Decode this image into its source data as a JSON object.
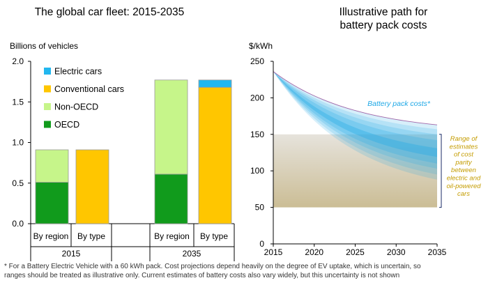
{
  "left_title": "The global car fleet: 2015-2035",
  "left_unit": "Billions of vehicles",
  "right_title_line1": "Illustrative path for",
  "right_title_line2": "battery pack costs",
  "right_unit": "$/kWh",
  "footnote_line1": "* For a Battery Electric Vehicle with a 60 kWh pack. Cost projections depend heavily on the degree of EV uptake, which is uncertain, so",
  "footnote_line2": "ranges should be treated as illustrative only. Current estimates of battery costs also vary widely, but this uncertainty is not shown",
  "colors": {
    "electric": "#22b7ef",
    "conventional": "#ffc600",
    "non_oecd": "#c6f58a",
    "oecd": "#119b1c",
    "band_blue": "#1fa8e6",
    "parity_band_top": "#e6e3dc",
    "parity_band_bottom": "#cbbd95",
    "parity_text": "#c49c00"
  },
  "chart_data": [
    {
      "type": "bar",
      "stacked": true,
      "title": "The global car fleet: 2015-2035",
      "ylabel": "Billions of vehicles",
      "ylim": [
        0,
        2.0
      ],
      "yticks": [
        "0.0",
        "0.5",
        "1.0",
        "1.5",
        "2.0"
      ],
      "categories": [
        "By region",
        "By type",
        "By region",
        "By type"
      ],
      "groups": [
        "2015",
        "2035"
      ],
      "legend": [
        "Electric cars",
        "Conventional cars",
        "Non-OECD",
        "OECD"
      ],
      "series": [
        {
          "name": "OECD",
          "values": [
            0.51,
            0,
            0.61,
            0
          ]
        },
        {
          "name": "Non-OECD",
          "values": [
            0.4,
            0,
            1.16,
            0
          ]
        },
        {
          "name": "Conventional cars",
          "values": [
            0,
            0.91,
            0,
            1.68
          ]
        },
        {
          "name": "Electric cars",
          "values": [
            0,
            0,
            0,
            0.09
          ]
        }
      ]
    },
    {
      "type": "area",
      "title": "Illustrative path for battery pack costs",
      "ylabel": "$/kWh",
      "ylim": [
        0,
        250
      ],
      "xlim": [
        2015,
        2035
      ],
      "xticks": [
        "2015",
        "2020",
        "2025",
        "2030",
        "2035"
      ],
      "yticks": [
        "0",
        "50",
        "100",
        "150",
        "200",
        "250"
      ],
      "start_value": 236,
      "end_upper": 163,
      "end_central": 125,
      "end_lower": 88,
      "series_label": "Battery pack costs*",
      "parity_range": [
        50,
        150
      ],
      "parity_label": [
        "Range of",
        "estimates",
        "of cost",
        "parity",
        "between",
        "electric and",
        "oil-powered",
        "cars"
      ]
    }
  ]
}
